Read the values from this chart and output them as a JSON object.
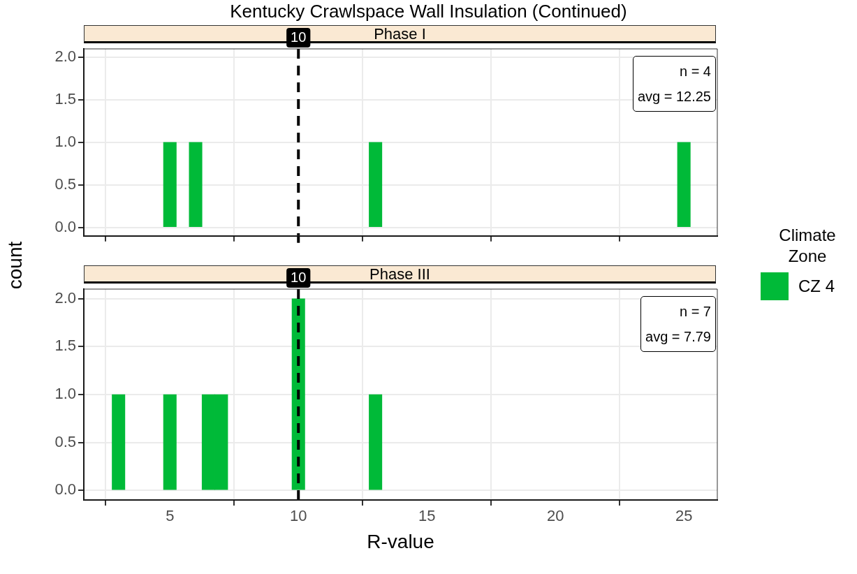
{
  "chart_data": [
    {
      "type": "histogram",
      "title": "Kentucky Crawlspace Wall Insulation (Continued)",
      "subtitle": "Phase I",
      "ylabel": "count",
      "legend_title": "Climate Zone",
      "legend": "right",
      "bins": [
        4.75,
        5.25,
        5.75,
        6.25,
        6.75,
        7.25,
        7.75,
        8.25,
        8.75,
        9.25,
        9.75,
        10.25,
        10.75,
        11.25,
        11.75,
        12.25,
        12.75,
        13.25,
        13.75,
        14.25,
        14.75,
        15.25,
        15.75,
        16.25,
        16.75,
        17.25,
        17.75,
        18.25,
        18.75,
        19.25,
        19.75,
        20.25,
        20.75,
        21.25,
        21.75,
        22.25,
        22.75,
        23.25,
        23.75,
        24.25,
        24.75,
        25.25
      ],
      "series": [
        {
          "name": "CZ 4",
          "color": "#00ba38",
          "values": [
            1,
            0,
            1,
            0,
            0,
            0,
            0,
            0,
            0,
            0,
            0,
            0,
            0,
            0,
            0,
            0,
            1,
            0,
            0,
            0,
            0,
            0,
            0,
            0,
            0,
            0,
            0,
            0,
            0,
            0,
            0,
            0,
            0,
            0,
            0,
            0,
            0,
            0,
            0,
            0,
            1
          ]
        }
      ],
      "xlim": [
        1.65,
        26.3
      ],
      "xticks": [
        5,
        10,
        15,
        20,
        25
      ],
      "ylim": [
        -0.1,
        2.1
      ],
      "yticks": [
        {
          "value": 0,
          "label": "0.0"
        },
        {
          "value": 0.5,
          "label": "0.5"
        },
        {
          "value": 1,
          "label": "1.0"
        },
        {
          "value": 1.5,
          "label": "1.5"
        },
        {
          "value": 2,
          "label": "2.0"
        }
      ],
      "grid": true,
      "tick_labels": "y",
      "ref_lines": [
        {
          "axis": "x",
          "value": 10,
          "label": "10",
          "color": "#000000",
          "line_style": "dashed"
        }
      ],
      "annotations": [
        "n = 4",
        "avg = 12.25"
      ]
    },
    {
      "type": "histogram",
      "subtitle": "Phase III",
      "xlabel": "R-value",
      "bins": [
        2.75,
        3.25,
        3.75,
        4.25,
        4.75,
        5.25,
        5.75,
        6.25,
        6.75,
        7.25,
        7.75,
        8.25,
        8.75,
        9.25,
        9.75,
        10.25,
        10.75,
        11.25,
        11.75,
        12.25,
        12.75,
        13.25
      ],
      "series": [
        {
          "name": "CZ 4",
          "color": "#00ba38",
          "values": [
            1,
            0,
            0,
            0,
            1,
            0,
            0,
            1,
            1,
            0,
            0,
            0,
            0,
            0,
            2,
            0,
            0,
            0,
            0,
            0,
            1
          ]
        }
      ],
      "xlim": [
        1.65,
        26.3
      ],
      "xticks": [
        5,
        10,
        15,
        20,
        25
      ],
      "ylim": [
        -0.1,
        2.1
      ],
      "yticks": [
        {
          "value": 0,
          "label": "0.0"
        },
        {
          "value": 0.5,
          "label": "0.5"
        },
        {
          "value": 1,
          "label": "1.0"
        },
        {
          "value": 1.5,
          "label": "1.5"
        },
        {
          "value": 2,
          "label": "2.0"
        }
      ],
      "grid": true,
      "ref_lines": [
        {
          "axis": "x",
          "value": 10,
          "label": "10",
          "color": "#000000",
          "line_style": "dashed"
        }
      ],
      "annotations": [
        "n = 7",
        "avg = 7.79"
      ]
    }
  ]
}
